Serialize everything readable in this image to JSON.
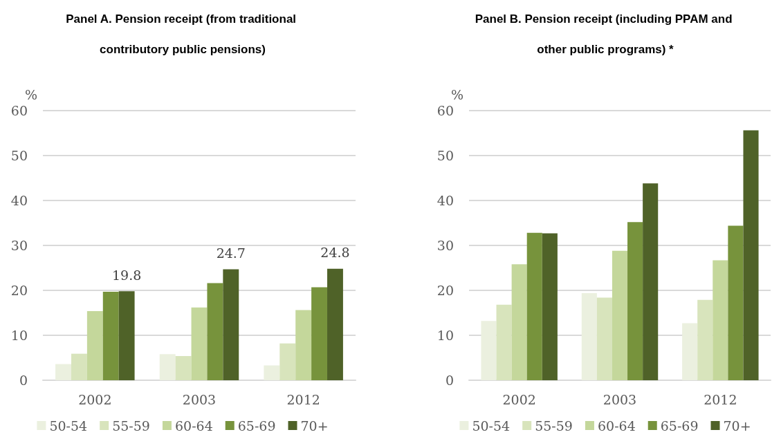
{
  "chart_data": [
    {
      "type": "bar",
      "title": "Panel A. Pension receipt (from traditional contributory public pensions)",
      "ylabel": "%",
      "categories": [
        "2002",
        "2003",
        "2012"
      ],
      "ylim": [
        0,
        60
      ],
      "yticks": [
        0,
        10,
        20,
        30,
        40,
        50,
        60
      ],
      "grid": "y",
      "legend": "bottom",
      "series": [
        {
          "name": "50-54",
          "color": "#ebf0df",
          "values": [
            3.6,
            5.8,
            3.3
          ]
        },
        {
          "name": "55-59",
          "color": "#d8e4bc",
          "values": [
            5.9,
            5.4,
            8.2
          ]
        },
        {
          "name": "60-64",
          "color": "#c4d79b",
          "values": [
            15.4,
            16.2,
            15.6
          ]
        },
        {
          "name": "65-69",
          "color": "#77933c",
          "values": [
            19.7,
            21.6,
            20.7
          ]
        },
        {
          "name": "70+",
          "color": "#4f6228",
          "values": [
            19.8,
            24.7,
            24.8
          ],
          "value_labels": [
            "19.8",
            "24.7",
            "24.8"
          ]
        }
      ]
    },
    {
      "type": "bar",
      "title": "Panel B. Pension receipt (including PPAM and other public programs) *",
      "ylabel": "%",
      "categories": [
        "2002",
        "2003",
        "2012"
      ],
      "ylim": [
        0,
        60
      ],
      "yticks": [
        0,
        10,
        20,
        30,
        40,
        50,
        60
      ],
      "grid": "y",
      "legend": "bottom",
      "series": [
        {
          "name": "50-54",
          "color": "#ebf0df",
          "values": [
            13.2,
            19.4,
            12.7
          ]
        },
        {
          "name": "55-59",
          "color": "#d8e4bc",
          "values": [
            16.8,
            18.4,
            17.9
          ]
        },
        {
          "name": "60-64",
          "color": "#c4d79b",
          "values": [
            25.8,
            28.8,
            26.7
          ]
        },
        {
          "name": "65-69",
          "color": "#77933c",
          "values": [
            32.8,
            35.2,
            34.4
          ]
        },
        {
          "name": "70+",
          "color": "#4f6228",
          "values": [
            32.7,
            43.8,
            55.6
          ]
        }
      ]
    }
  ]
}
